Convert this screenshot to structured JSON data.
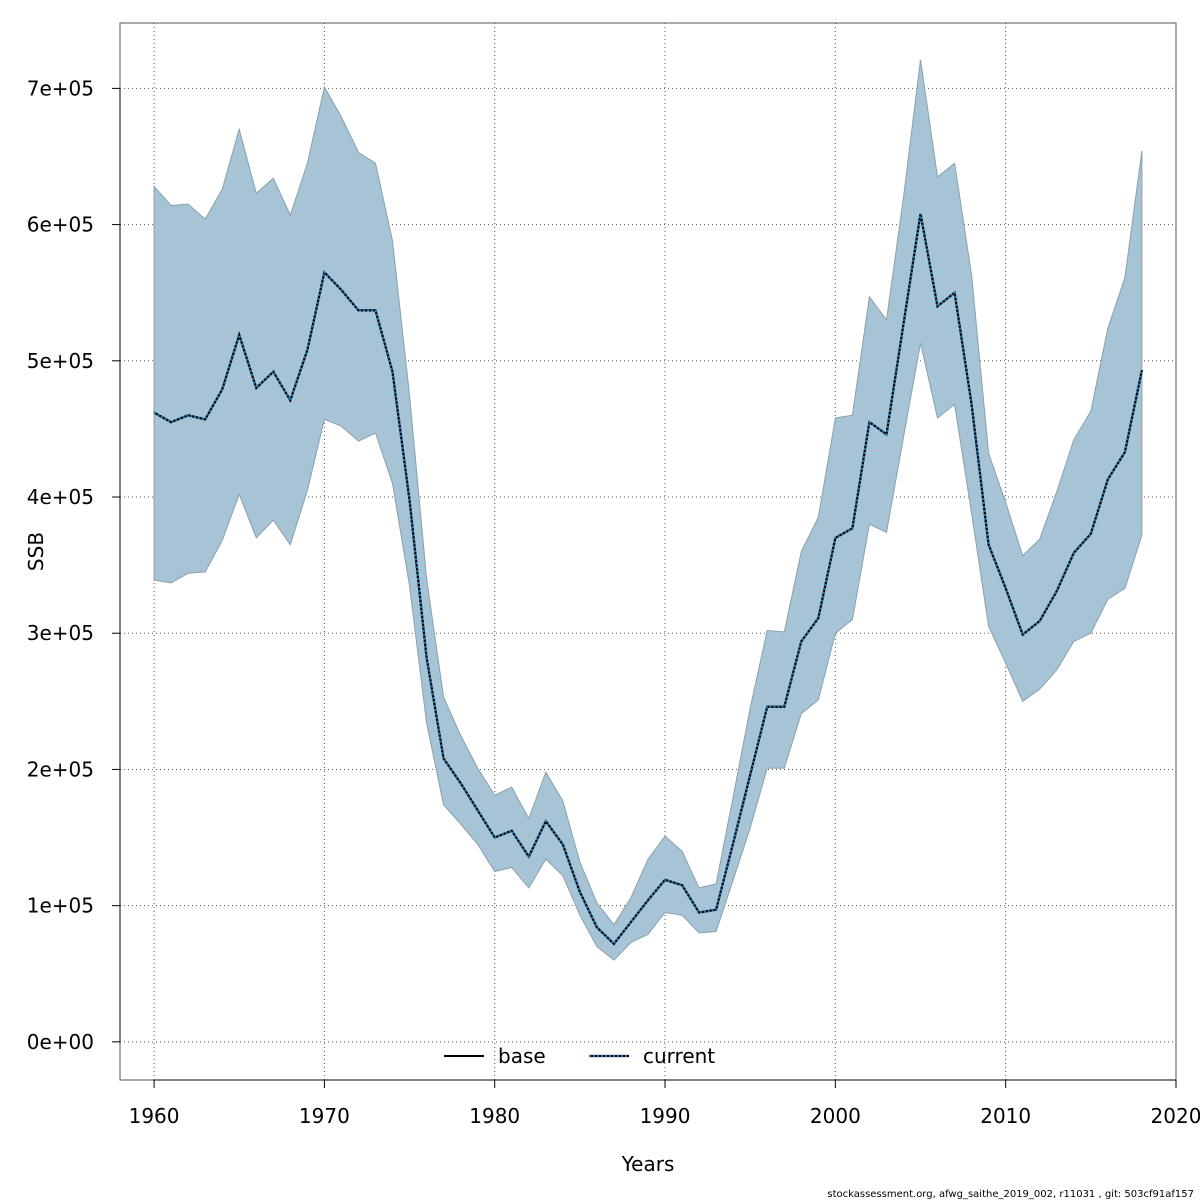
{
  "chart_data": {
    "type": "line",
    "title": "",
    "xlabel": "Years",
    "ylabel": "SSB",
    "xlim": [
      1958,
      2020
    ],
    "ylim": [
      -28000,
      748000
    ],
    "x_ticks": [
      1960,
      1970,
      1980,
      1990,
      2000,
      2010,
      2020
    ],
    "x_tick_labels": [
      "1960",
      "1970",
      "1980",
      "1990",
      "2000",
      "2010",
      "2020"
    ],
    "y_ticks": [
      0,
      100000,
      200000,
      300000,
      400000,
      500000,
      600000,
      700000
    ],
    "y_tick_labels": [
      "0e+00",
      "1e+05",
      "2e+05",
      "3e+05",
      "4e+05",
      "5e+05",
      "6e+05",
      "7e+05"
    ],
    "grid": true,
    "legend_position": "bottom-center",
    "x": [
      1960,
      1961,
      1962,
      1963,
      1964,
      1965,
      1966,
      1967,
      1968,
      1969,
      1970,
      1971,
      1972,
      1973,
      1974,
      1975,
      1976,
      1977,
      1978,
      1979,
      1980,
      1981,
      1982,
      1983,
      1984,
      1985,
      1986,
      1987,
      1988,
      1989,
      1990,
      1991,
      1992,
      1993,
      1994,
      1995,
      1996,
      1997,
      1998,
      1999,
      2000,
      2001,
      2002,
      2003,
      2004,
      2005,
      2006,
      2007,
      2008,
      2009,
      2010,
      2011,
      2012,
      2013,
      2014,
      2015,
      2016,
      2017,
      2018
    ],
    "band": {
      "color": "#a6c4d5",
      "edge_color": "#8aa0ad",
      "upper": [
        628000,
        614000,
        615000,
        604000,
        626000,
        670000,
        623000,
        634000,
        607000,
        645000,
        701000,
        679000,
        653000,
        645000,
        588000,
        475000,
        340000,
        253000,
        225000,
        201000,
        181000,
        187000,
        164000,
        198000,
        177000,
        132000,
        102000,
        86000,
        106000,
        134000,
        151000,
        140000,
        113000,
        116000,
        180000,
        245000,
        302000,
        301000,
        360000,
        385000,
        458000,
        460000,
        547000,
        530000,
        620000,
        721000,
        635000,
        645000,
        563000,
        432000,
        396000,
        357000,
        369000,
        404000,
        442000,
        463000,
        524000,
        561000,
        654000
      ],
      "lower": [
        339000,
        337000,
        344000,
        345000,
        368000,
        402000,
        370000,
        383000,
        365000,
        405000,
        457000,
        452000,
        441000,
        447000,
        410000,
        335000,
        234000,
        174000,
        160000,
        145000,
        125000,
        128000,
        113000,
        134000,
        122000,
        93000,
        70000,
        60000,
        73000,
        79000,
        95000,
        93000,
        80000,
        81000,
        119000,
        157000,
        201000,
        201000,
        241000,
        251000,
        300000,
        310000,
        380000,
        374000,
        444000,
        513000,
        458000,
        468000,
        388000,
        305000,
        278000,
        250000,
        259000,
        273000,
        294000,
        300000,
        325000,
        333000,
        372000
      ]
    },
    "series": [
      {
        "name": "base",
        "color": "#000000",
        "dash": "solid",
        "values": [
          462000,
          455000,
          460000,
          457000,
          479000,
          519000,
          480000,
          492000,
          471000,
          508000,
          565000,
          552000,
          537000,
          537000,
          492000,
          398000,
          282000,
          208000,
          190000,
          170000,
          150000,
          155000,
          136000,
          162000,
          145000,
          110000,
          84000,
          72000,
          88000,
          104000,
          119000,
          115000,
          95000,
          97000,
          146000,
          196000,
          246000,
          246000,
          294000,
          311000,
          370000,
          377000,
          455000,
          446000,
          527000,
          608000,
          540000,
          550000,
          468000,
          365000,
          333000,
          299000,
          309000,
          331000,
          359000,
          373000,
          413000,
          433000,
          493000
        ]
      },
      {
        "name": "current",
        "color": "#1f78b4",
        "dash": "dotted",
        "values": [
          462000,
          455000,
          460000,
          457000,
          479000,
          519000,
          480000,
          492000,
          471000,
          508000,
          565000,
          552000,
          537000,
          537000,
          492000,
          398000,
          282000,
          208000,
          190000,
          170000,
          150000,
          155000,
          136000,
          162000,
          145000,
          110000,
          84000,
          72000,
          88000,
          104000,
          119000,
          115000,
          95000,
          97000,
          146000,
          196000,
          246000,
          246000,
          294000,
          311000,
          370000,
          377000,
          455000,
          446000,
          527000,
          608000,
          540000,
          550000,
          468000,
          365000,
          333000,
          299000,
          309000,
          331000,
          359000,
          373000,
          413000,
          433000,
          493000
        ]
      }
    ]
  },
  "footer": "stockassessment.org, afwg_saithe_2019_002, r11031 , git: 503cf91af157"
}
